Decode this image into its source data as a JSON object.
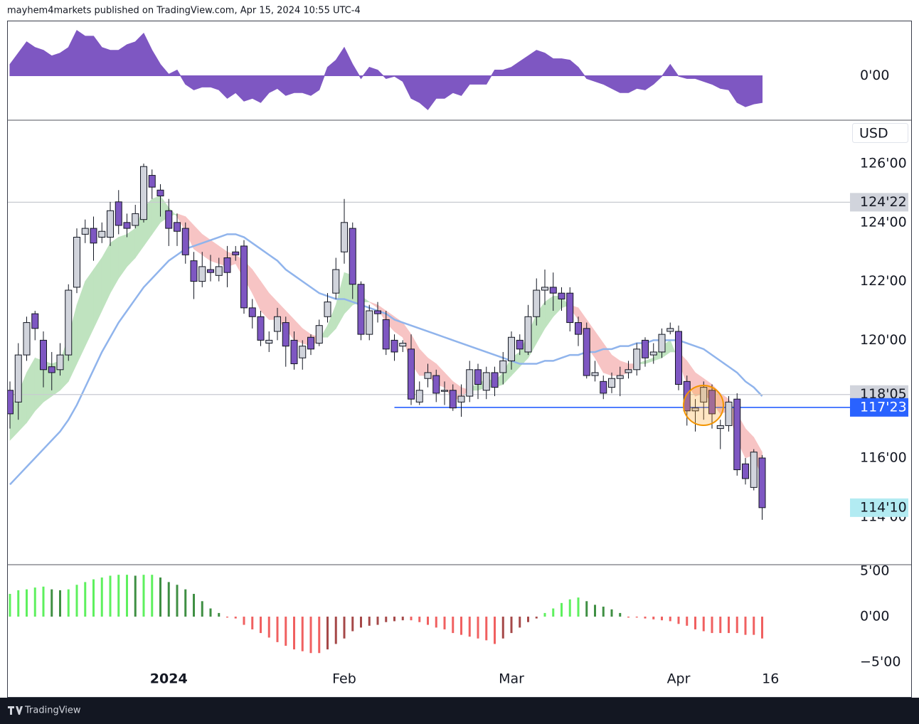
{
  "header": "mayhem4markets published on TradingView.com, Apr 15, 2024 10:55 UTC-4",
  "footer": "TradingView",
  "chart_data": [
    {
      "type": "candlestick",
      "currency": "USD",
      "ylim": [
        112.4,
        127.45
      ],
      "yticks": [
        {
          "value": 126,
          "label": "126'00"
        },
        {
          "value": 124,
          "label": "124'00"
        },
        {
          "value": 122,
          "label": "122'00"
        },
        {
          "value": 120,
          "label": "120'00"
        },
        {
          "value": 116,
          "label": "116'00"
        },
        {
          "value": 114,
          "label": "114'00"
        }
      ],
      "xticks": [
        {
          "value": 19,
          "label": "2024"
        },
        {
          "value": 40,
          "label": "Feb"
        },
        {
          "value": 60,
          "label": "Mar"
        },
        {
          "value": 80,
          "label": "Apr"
        },
        {
          "value": 91,
          "label": "16"
        }
      ],
      "up_color": "#d1d4dc",
      "down_color": "#7e57c2",
      "open": [
        118.3,
        117.9,
        119.5,
        120.9,
        120.0,
        119.1,
        119.0,
        119.5,
        121.8,
        123.6,
        123.8,
        123.5,
        123.5,
        124.7,
        124.0,
        123.9,
        124.1,
        125.6,
        125.1,
        124.4,
        124.0,
        123.8,
        122.7,
        122.0,
        122.4,
        122.2,
        122.8,
        123.0,
        123.2,
        121.1,
        120.8,
        119.9,
        120.3,
        120.6,
        120.0,
        119.4,
        120.1,
        119.9,
        120.8,
        121.6,
        123.0,
        123.8,
        121.9,
        120.2,
        121.0,
        120.7,
        120.0,
        119.8,
        119.7,
        117.9,
        118.7,
        118.8,
        118.3,
        118.3,
        117.9,
        118.1,
        119.0,
        118.3,
        118.9,
        118.9,
        119.3,
        120.0,
        119.6,
        120.8,
        121.7,
        121.8,
        121.6,
        121.6,
        120.6,
        120.4,
        118.8,
        118.6,
        118.4,
        118.7,
        118.9,
        119.0,
        120.0,
        119.5,
        119.6,
        120.3,
        120.3,
        118.6,
        117.6,
        117.9,
        118.3,
        117.0,
        117.1,
        118.0,
        115.8,
        115.0,
        116.0
      ],
      "high": [
        118.6,
        119.9,
        120.8,
        121.0,
        120.3,
        119.6,
        119.9,
        121.9,
        123.8,
        124.1,
        124.2,
        124.0,
        124.7,
        125.1,
        124.3,
        124.6,
        126.0,
        125.8,
        125.3,
        124.8,
        124.3,
        124.0,
        123.0,
        123.0,
        122.9,
        122.8,
        123.2,
        123.2,
        123.4,
        121.4,
        121.0,
        120.3,
        121.1,
        120.8,
        120.3,
        120.0,
        120.2,
        120.7,
        121.6,
        122.8,
        124.8,
        124.0,
        122.0,
        121.2,
        121.3,
        121.0,
        120.2,
        120.0,
        120.2,
        118.6,
        119.2,
        119.0,
        118.6,
        118.5,
        118.5,
        119.3,
        119.2,
        119.1,
        119.1,
        119.6,
        120.3,
        120.2,
        121.2,
        122.1,
        122.4,
        122.3,
        121.8,
        121.8,
        120.8,
        120.6,
        119.3,
        118.8,
        118.9,
        119.1,
        119.3,
        119.9,
        120.1,
        119.9,
        120.4,
        120.6,
        120.5,
        118.8,
        118.0,
        118.6,
        118.5,
        117.3,
        118.1,
        118.2,
        116.0,
        116.3,
        116.1
      ],
      "low": [
        117.0,
        117.3,
        119.3,
        120.0,
        118.4,
        118.3,
        118.8,
        119.3,
        121.6,
        123.3,
        122.7,
        123.3,
        123.2,
        123.6,
        123.5,
        123.8,
        124.0,
        124.8,
        124.2,
        123.2,
        123.2,
        122.6,
        121.4,
        121.8,
        122.0,
        122.0,
        121.8,
        122.7,
        120.9,
        120.4,
        119.8,
        119.6,
        120.0,
        119.1,
        119.0,
        119.0,
        119.5,
        119.8,
        120.6,
        121.4,
        122.6,
        121.4,
        120.0,
        120.0,
        120.6,
        119.5,
        119.3,
        119.6,
        117.8,
        117.8,
        118.4,
        117.9,
        117.8,
        117.6,
        117.4,
        117.9,
        118.0,
        118.0,
        118.1,
        118.5,
        119.0,
        119.5,
        119.5,
        120.5,
        121.2,
        121.0,
        121.0,
        120.3,
        119.8,
        118.7,
        118.6,
        118.0,
        118.2,
        118.1,
        118.7,
        118.8,
        119.1,
        119.2,
        119.4,
        120.2,
        118.3,
        117.1,
        116.9,
        117.3,
        117.0,
        116.3,
        116.9,
        115.4,
        115.1,
        114.9,
        113.9
      ],
      "close": [
        117.5,
        119.5,
        120.6,
        120.4,
        119.0,
        118.9,
        119.5,
        121.7,
        123.5,
        123.8,
        123.3,
        123.7,
        124.4,
        123.9,
        123.8,
        124.3,
        125.9,
        125.2,
        124.9,
        123.8,
        123.7,
        122.9,
        122.0,
        122.5,
        122.3,
        122.5,
        122.3,
        122.9,
        121.1,
        120.8,
        120.0,
        120.0,
        120.8,
        119.8,
        119.2,
        119.8,
        119.7,
        120.5,
        121.3,
        122.4,
        124.0,
        121.9,
        120.2,
        121.0,
        120.9,
        119.7,
        119.6,
        119.9,
        118.0,
        118.3,
        118.9,
        118.2,
        118.3,
        117.7,
        118.1,
        119.0,
        118.5,
        118.9,
        118.4,
        119.3,
        120.1,
        119.7,
        120.8,
        121.7,
        121.8,
        121.6,
        121.4,
        120.6,
        120.2,
        118.8,
        118.9,
        118.2,
        118.7,
        118.8,
        119.0,
        119.7,
        119.4,
        119.6,
        120.2,
        120.4,
        118.5,
        117.6,
        117.7,
        118.4,
        117.5,
        117.1,
        117.9,
        115.6,
        115.3,
        116.2,
        114.3125
      ],
      "ma": {
        "color": "#90b4ec",
        "values": [
          115.1,
          115.4,
          115.7,
          116.0,
          116.3,
          116.6,
          116.9,
          117.3,
          117.8,
          118.4,
          119.0,
          119.6,
          120.1,
          120.6,
          121.0,
          121.4,
          121.8,
          122.1,
          122.4,
          122.7,
          122.9,
          123.1,
          123.2,
          123.3,
          123.4,
          123.5,
          123.6,
          123.6,
          123.5,
          123.3,
          123.1,
          122.9,
          122.7,
          122.4,
          122.2,
          122.0,
          121.8,
          121.6,
          121.5,
          121.4,
          121.4,
          121.3,
          121.2,
          121.1,
          121.0,
          120.9,
          120.7,
          120.6,
          120.5,
          120.4,
          120.3,
          120.2,
          120.1,
          120.0,
          119.9,
          119.8,
          119.7,
          119.6,
          119.5,
          119.4,
          119.3,
          119.2,
          119.2,
          119.2,
          119.3,
          119.3,
          119.4,
          119.5,
          119.5,
          119.6,
          119.6,
          119.7,
          119.7,
          119.8,
          119.8,
          119.9,
          119.9,
          120.0,
          120.0,
          120.0,
          120.0,
          119.9,
          119.8,
          119.7,
          119.5,
          119.3,
          119.1,
          118.9,
          118.6,
          118.4,
          118.1
        ]
      },
      "cloud": {
        "up_color": "#bfe3bf",
        "down_color": "#f7c4c4",
        "fast": [
          117.6,
          118.2,
          118.9,
          119.4,
          119.3,
          119.2,
          119.3,
          120.1,
          121.2,
          122.0,
          122.4,
          122.8,
          123.3,
          123.5,
          123.6,
          123.8,
          124.5,
          124.8,
          124.9,
          124.5,
          124.2,
          123.7,
          123.1,
          122.9,
          122.7,
          122.6,
          122.5,
          122.6,
          122.1,
          121.6,
          121.0,
          120.7,
          120.7,
          120.4,
          120.0,
          119.9,
          119.8,
          120.0,
          120.5,
          121.2,
          122.3,
          122.2,
          121.5,
          121.3,
          121.1,
          120.6,
          120.3,
          120.1,
          119.2,
          118.8,
          118.8,
          118.5,
          118.4,
          118.0,
          118.0,
          118.4,
          118.5,
          118.7,
          118.6,
          118.9,
          119.4,
          119.6,
          120.2,
          120.9,
          121.3,
          121.5,
          121.5,
          121.1,
          120.7,
          119.8,
          119.4,
          118.9,
          118.8,
          118.8,
          118.9,
          119.2,
          119.3,
          119.4,
          119.8,
          120.0,
          119.3,
          118.5,
          118.1,
          118.2,
          117.9,
          117.5,
          117.6,
          116.6,
          116.0,
          116.1,
          115.3
        ],
        "slow": [
          116.6,
          116.9,
          117.2,
          117.6,
          117.9,
          118.1,
          118.3,
          118.6,
          119.2,
          119.8,
          120.4,
          121.0,
          121.6,
          122.1,
          122.5,
          122.8,
          123.2,
          123.6,
          124.0,
          124.2,
          124.3,
          124.2,
          123.9,
          123.6,
          123.4,
          123.2,
          123.0,
          122.9,
          122.7,
          122.4,
          122.0,
          121.6,
          121.3,
          121.0,
          120.7,
          120.4,
          120.2,
          120.1,
          120.1,
          120.4,
          120.9,
          121.2,
          121.3,
          121.3,
          121.2,
          121.0,
          120.8,
          120.6,
          120.2,
          119.7,
          119.4,
          119.2,
          118.9,
          118.6,
          118.4,
          118.3,
          118.3,
          118.4,
          118.4,
          118.5,
          118.8,
          119.1,
          119.4,
          119.9,
          120.4,
          120.8,
          121.1,
          121.2,
          121.1,
          120.7,
          120.3,
          119.9,
          119.5,
          119.3,
          119.2,
          119.2,
          119.2,
          119.3,
          119.4,
          119.6,
          119.6,
          119.3,
          118.9,
          118.7,
          118.5,
          118.2,
          118.0,
          117.5,
          117.0,
          116.7,
          116.2
        ]
      },
      "levels": [
        {
          "value": 124.6875,
          "label": "124'22",
          "line": true,
          "line_color": "#c8cad0",
          "box_color": "#d1d4dc",
          "text_color": "#131722"
        },
        {
          "value": 118.15625,
          "label": "118'05",
          "line": true,
          "line_color": "#c8cad0",
          "box_color": "#d1d4dc",
          "text_color": "#131722"
        },
        {
          "value": 117.71875,
          "label": "117'23",
          "line": true,
          "line_from": 46,
          "line_color": "#2962ff",
          "box_color": "#2962ff",
          "text_color": "#ffffff"
        },
        {
          "value": 114.3125,
          "label": "114'10",
          "line": false,
          "box_color": "#b2ebf2",
          "text_color": "#131722"
        }
      ]
    },
    {
      "type": "area",
      "color": "#7e57c2",
      "ylim": [
        -1.55,
        1.9
      ],
      "yticks": [
        {
          "value": 0,
          "label": "0'00"
        }
      ],
      "values": [
        0.4,
        0.8,
        1.2,
        1.0,
        0.9,
        0.7,
        0.8,
        1.0,
        1.6,
        1.4,
        1.4,
        1.0,
        0.9,
        0.9,
        1.1,
        1.2,
        1.5,
        0.9,
        0.4,
        0.05,
        0.2,
        -0.3,
        -0.5,
        -0.4,
        -0.4,
        -0.5,
        -0.8,
        -0.6,
        -0.9,
        -0.8,
        -0.95,
        -0.6,
        -0.45,
        -0.7,
        -0.6,
        -0.6,
        -0.7,
        -0.5,
        0.3,
        0.55,
        1.0,
        0.4,
        -0.1,
        0.3,
        0.2,
        -0.1,
        -0.02,
        -0.2,
        -0.8,
        -0.95,
        -1.2,
        -0.8,
        -0.8,
        -0.6,
        -0.7,
        -0.3,
        -0.3,
        -0.3,
        0.2,
        0.2,
        0.3,
        0.5,
        0.7,
        0.9,
        0.8,
        0.6,
        0.6,
        0.55,
        0.3,
        -0.1,
        -0.2,
        -0.3,
        -0.45,
        -0.6,
        -0.6,
        -0.45,
        -0.5,
        -0.3,
        -0.02,
        0.4,
        -0.02,
        -0.1,
        -0.1,
        -0.2,
        -0.3,
        -0.45,
        -0.5,
        -0.95,
        -1.1,
        -1.0,
        -0.95
      ]
    },
    {
      "type": "histogram",
      "colors": {
        "up_rising": "#5ef05e",
        "up_falling": "#3f8f43",
        "down_falling": "#f06060",
        "down_rising": "#a54848"
      },
      "ylim": [
        -5.31,
        5.63
      ],
      "yticks": [
        {
          "value": 5,
          "label": "5'00"
        },
        {
          "value": 0,
          "label": "0'00"
        },
        {
          "value": -5,
          "label": "−5'00"
        }
      ],
      "values": [
        2.5,
        2.9,
        3.0,
        3.2,
        3.3,
        3.0,
        2.9,
        3.0,
        3.5,
        3.8,
        4.1,
        4.3,
        4.5,
        4.6,
        4.6,
        4.5,
        4.6,
        4.6,
        4.3,
        3.8,
        3.5,
        3.0,
        2.5,
        1.7,
        0.9,
        0.4,
        -0.1,
        -0.2,
        -0.9,
        -1.4,
        -1.8,
        -2.3,
        -2.8,
        -3.2,
        -3.6,
        -3.8,
        -4.0,
        -4.0,
        -3.6,
        -3.0,
        -2.4,
        -1.6,
        -1.2,
        -1.0,
        -0.9,
        -0.6,
        -0.5,
        -0.4,
        -0.4,
        -0.6,
        -0.9,
        -1.2,
        -1.4,
        -1.8,
        -2.0,
        -2.2,
        -2.4,
        -2.6,
        -3.0,
        -2.4,
        -1.8,
        -1.2,
        -0.6,
        -0.2,
        0.4,
        0.9,
        1.5,
        1.9,
        2.1,
        1.7,
        1.3,
        1.1,
        0.8,
        0.4,
        -0.1,
        -0.1,
        -0.2,
        -0.3,
        -0.4,
        -0.5,
        -0.8,
        -1.0,
        -1.4,
        -1.6,
        -1.8,
        -1.8,
        -1.8,
        -1.8,
        -2.0,
        -2.0,
        -2.4
      ]
    }
  ]
}
